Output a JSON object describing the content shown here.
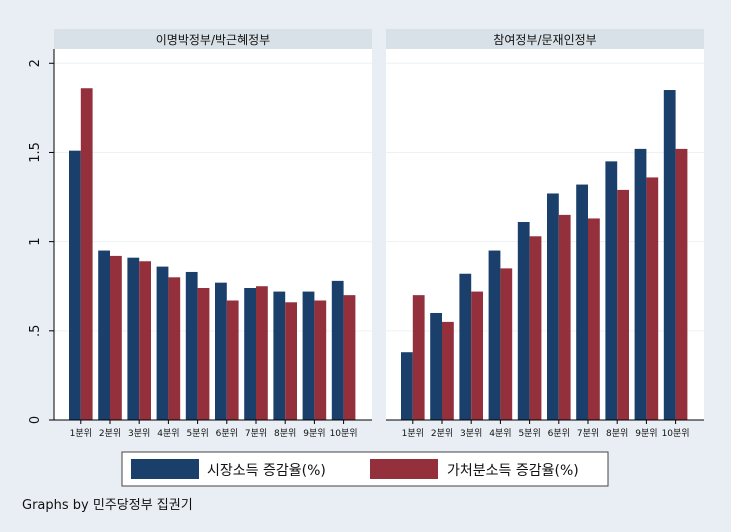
{
  "chart_data": {
    "type": "bar",
    "panels": [
      {
        "title": "이명박정부/박근혜정부",
        "categories": [
          "1분위",
          "2분위",
          "3분위",
          "4분위",
          "5분위",
          "6분위",
          "7분위",
          "8분위",
          "9분위",
          "10분위"
        ],
        "series": [
          {
            "name": "시장소득 증감율(%)",
            "color": "#1a3f6b",
            "values": [
              1.51,
              0.95,
              0.91,
              0.86,
              0.83,
              0.77,
              0.74,
              0.72,
              0.72,
              0.78
            ]
          },
          {
            "name": "가처분소득 증감율(%)",
            "color": "#93303b",
            "values": [
              1.86,
              0.92,
              0.89,
              0.8,
              0.74,
              0.67,
              0.75,
              0.66,
              0.67,
              0.7
            ]
          }
        ]
      },
      {
        "title": "참여정부/문재인정부",
        "categories": [
          "1분위",
          "2분위",
          "3분위",
          "4분위",
          "5분위",
          "6분위",
          "7분위",
          "8분위",
          "9분위",
          "10분위"
        ],
        "series": [
          {
            "name": "시장소득 증감율(%)",
            "color": "#1a3f6b",
            "values": [
              0.38,
              0.6,
              0.82,
              0.95,
              1.11,
              1.27,
              1.32,
              1.45,
              1.52,
              1.85
            ]
          },
          {
            "name": "가처분소득 증감율(%)",
            "color": "#93303b",
            "values": [
              0.7,
              0.55,
              0.72,
              0.85,
              1.03,
              1.15,
              1.13,
              1.29,
              1.36,
              1.52
            ]
          }
        ]
      }
    ],
    "y_ticks": [
      0,
      0.5,
      1,
      1.5,
      2
    ],
    "y_tick_labels": [
      "0",
      ".5",
      "1",
      "1.5",
      "2"
    ],
    "ylim": [
      0,
      2.08
    ],
    "legend": [
      "시장소득 증감율(%)",
      "가처분소득 증감율(%)"
    ],
    "legend_position": "bottom"
  },
  "footer": "Graphs by 민주당정부 집권기"
}
